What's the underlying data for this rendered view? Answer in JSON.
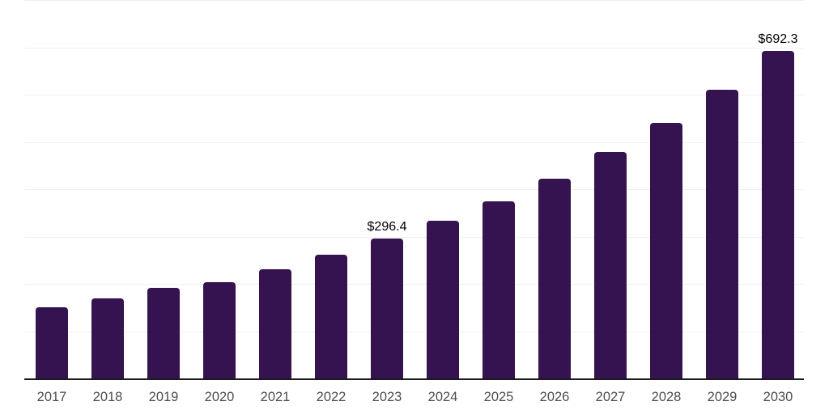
{
  "chart_data": {
    "type": "bar",
    "title": "",
    "xlabel": "",
    "ylabel": "",
    "categories": [
      "2017",
      "2018",
      "2019",
      "2020",
      "2021",
      "2022",
      "2023",
      "2024",
      "2025",
      "2026",
      "2027",
      "2028",
      "2029",
      "2030"
    ],
    "values": [
      150.4,
      169.2,
      191.5,
      203.4,
      230.8,
      261.5,
      296.4,
      333.3,
      374.4,
      422.2,
      478.6,
      540.2,
      610.3,
      692.3
    ],
    "visible_value_labels": [
      "",
      "",
      "",
      "",
      "",
      "",
      "$296.4",
      "",
      "",
      "",
      "",
      "",
      "",
      "$692.3"
    ],
    "annotations": [
      {
        "category": "2023",
        "text": "$296.4"
      },
      {
        "category": "2030",
        "text": "$692.3"
      }
    ],
    "ylim": [
      0,
      800
    ],
    "gridline_interval": 100,
    "grid": "horizontal",
    "legend": "none",
    "y_axis_ticks_visible": false,
    "colors": {
      "bar": "#351250",
      "axis_line": "#1a1a1a",
      "gridline": "#f0f0f0",
      "tick_label": "#4d4d4d",
      "value_label": "#000000",
      "background": "#ffffff"
    }
  }
}
